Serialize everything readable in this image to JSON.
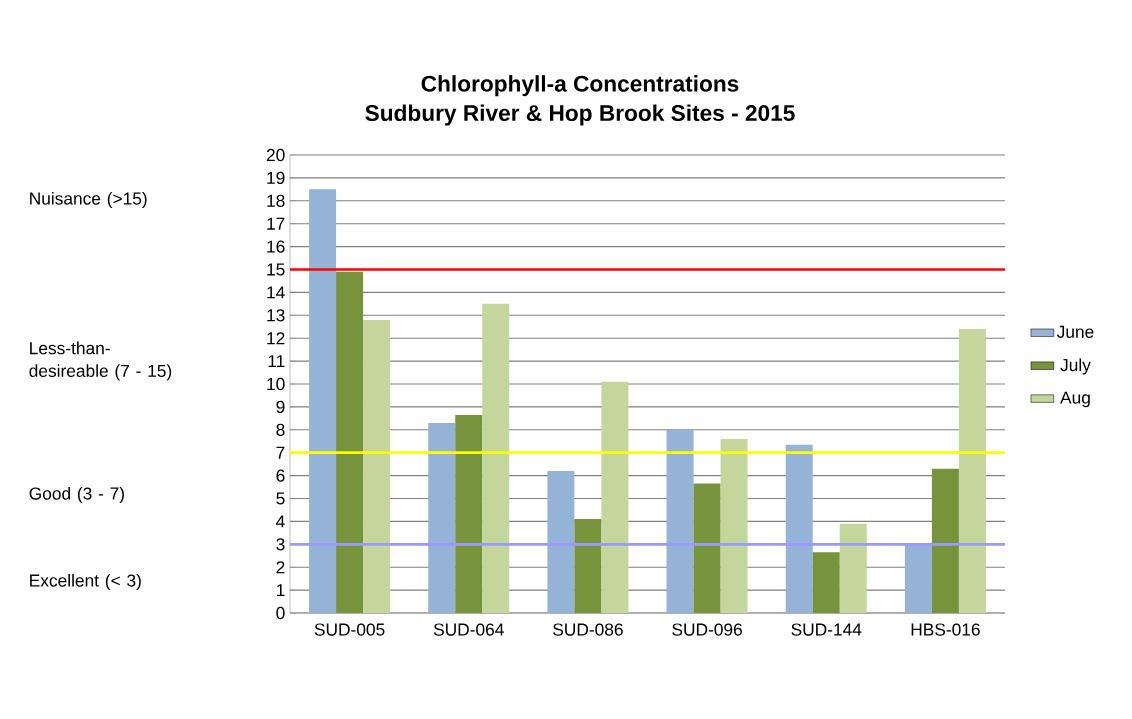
{
  "chart_data": {
    "type": "bar",
    "title": "Chlorophyll-a Concentrations",
    "subtitle": "Sudbury River & Hop Brook Sites - 2015",
    "categories": [
      "SUD-005",
      "SUD-064",
      "SUD-086",
      "SUD-096",
      "SUD-144",
      "HBS-016"
    ],
    "series": [
      {
        "name": "June",
        "color": "#95b3d7",
        "values": [
          18.5,
          8.3,
          6.2,
          8.0,
          7.35,
          3.05
        ]
      },
      {
        "name": "July",
        "color": "#77933c",
        "values": [
          14.9,
          8.65,
          4.1,
          5.65,
          2.65,
          6.3
        ]
      },
      {
        "name": "Aug",
        "color": "#c3d69b",
        "values": [
          12.8,
          13.5,
          10.1,
          7.6,
          3.9,
          12.4
        ]
      }
    ],
    "ylim": [
      0,
      20
    ],
    "yticks": [
      0,
      1,
      2,
      3,
      4,
      5,
      6,
      7,
      8,
      9,
      10,
      11,
      12,
      13,
      14,
      15,
      16,
      17,
      18,
      19,
      20
    ],
    "grid": "y",
    "legend": "right",
    "ref_lines": [
      {
        "axis": "y",
        "value": 15,
        "color": "#ff0000"
      },
      {
        "axis": "y",
        "value": 7,
        "color": "#ffff00"
      },
      {
        "axis": "y",
        "value": 3,
        "color": "#9999ff"
      }
    ],
    "annotations": [
      "Nuisance  (>15)",
      "Less-than-desireable (7 - 15)",
      "Good (3 - 7)",
      "Excellent  (< 3)"
    ]
  }
}
